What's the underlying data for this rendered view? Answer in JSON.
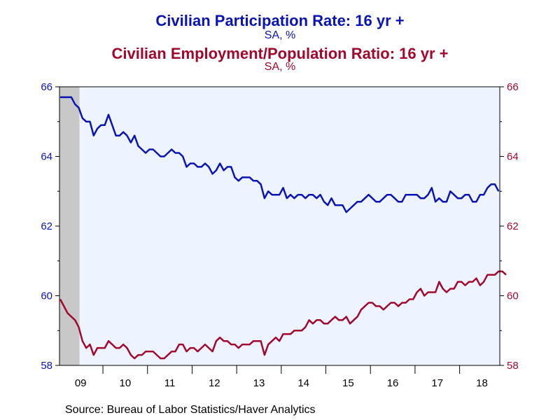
{
  "titles": {
    "title1": "Civilian Participation Rate: 16 yr +",
    "subtitle1": "SA, %",
    "title2": "Civilian Employment/Population Ratio: 16 yr +",
    "subtitle2": "SA, %"
  },
  "source": "Source:  Bureau of Labor Statistics/Haver Analytics",
  "colors": {
    "participation": "#0a14b4",
    "employment": "#a3072c",
    "plot_background": "#eef4ff",
    "recession_shade": "#c8c8c8"
  },
  "chart_data": {
    "type": "line",
    "x_unit": "monthly, Jan 2009 – Oct 2018",
    "start": "2009-01",
    "x_tick_labels": [
      "09",
      "10",
      "11",
      "12",
      "13",
      "14",
      "15",
      "16",
      "17",
      "18"
    ],
    "ylim": [
      58,
      66
    ],
    "y_ticks": [
      58,
      60,
      62,
      64,
      66
    ],
    "y_tick_labels_left": [
      "58",
      "60",
      "62",
      "64",
      "66"
    ],
    "y_tick_labels_right": [
      "58",
      "60",
      "62",
      "64",
      "66"
    ],
    "grid": false,
    "shaded_region": {
      "from": "2009-01",
      "to": "2009-06",
      "meaning": "recession"
    },
    "series": [
      {
        "name": "Civilian Participation Rate: 16 yr +",
        "color": "#0a14b4",
        "axis": "left",
        "values": [
          65.7,
          65.7,
          65.7,
          65.7,
          65.5,
          65.4,
          65.1,
          65.0,
          65.0,
          64.6,
          64.8,
          64.9,
          64.9,
          65.2,
          64.9,
          64.6,
          64.6,
          64.7,
          64.6,
          64.4,
          64.6,
          64.3,
          64.2,
          64.1,
          64.2,
          64.2,
          64.1,
          64.0,
          64.0,
          64.1,
          64.2,
          64.1,
          64.1,
          64.0,
          63.7,
          63.8,
          63.8,
          63.7,
          63.7,
          63.8,
          63.7,
          63.5,
          63.6,
          63.8,
          63.6,
          63.7,
          63.7,
          63.4,
          63.3,
          63.4,
          63.4,
          63.4,
          63.3,
          63.3,
          63.2,
          62.8,
          63.0,
          62.9,
          62.9,
          62.9,
          63.1,
          62.8,
          62.9,
          62.8,
          62.9,
          62.9,
          62.8,
          62.9,
          62.9,
          62.8,
          62.9,
          62.7,
          62.6,
          62.8,
          62.6,
          62.6,
          62.6,
          62.4,
          62.5,
          62.6,
          62.7,
          62.7,
          62.8,
          62.9,
          62.8,
          62.7,
          62.7,
          62.8,
          62.9,
          62.9,
          62.8,
          62.7,
          62.7,
          62.9,
          62.9,
          62.9,
          62.9,
          62.8,
          62.8,
          62.9,
          63.1,
          62.7,
          62.8,
          62.7,
          62.7,
          63.0,
          62.9,
          62.8,
          62.8,
          62.9,
          62.9,
          62.7,
          62.7,
          62.9,
          62.9,
          63.1,
          63.2,
          63.2,
          63.0
        ]
      },
      {
        "name": "Civilian Employment/Population Ratio: 16 yr +",
        "color": "#a3072c",
        "axis": "right",
        "values": [
          59.9,
          59.7,
          59.5,
          59.4,
          59.3,
          59.1,
          58.7,
          58.5,
          58.6,
          58.3,
          58.5,
          58.5,
          58.5,
          58.7,
          58.6,
          58.5,
          58.5,
          58.6,
          58.5,
          58.3,
          58.2,
          58.3,
          58.3,
          58.4,
          58.4,
          58.4,
          58.3,
          58.2,
          58.2,
          58.3,
          58.4,
          58.4,
          58.6,
          58.6,
          58.4,
          58.5,
          58.5,
          58.4,
          58.5,
          58.6,
          58.5,
          58.4,
          58.7,
          58.8,
          58.7,
          58.7,
          58.6,
          58.6,
          58.5,
          58.6,
          58.6,
          58.6,
          58.7,
          58.7,
          58.7,
          58.3,
          58.6,
          58.7,
          58.8,
          58.7,
          58.9,
          58.9,
          58.9,
          59.0,
          59.0,
          59.0,
          59.1,
          59.3,
          59.2,
          59.3,
          59.3,
          59.2,
          59.2,
          59.3,
          59.4,
          59.3,
          59.3,
          59.4,
          59.2,
          59.3,
          59.4,
          59.6,
          59.7,
          59.8,
          59.8,
          59.7,
          59.7,
          59.6,
          59.7,
          59.8,
          59.8,
          59.7,
          59.8,
          59.8,
          59.9,
          59.9,
          60.1,
          60.2,
          60.0,
          60.1,
          60.1,
          60.1,
          60.4,
          60.2,
          60.1,
          60.2,
          60.2,
          60.4,
          60.4,
          60.3,
          60.4,
          60.4,
          60.5,
          60.3,
          60.4,
          60.6,
          60.6,
          60.6,
          60.7,
          60.7,
          60.6
        ]
      }
    ]
  }
}
